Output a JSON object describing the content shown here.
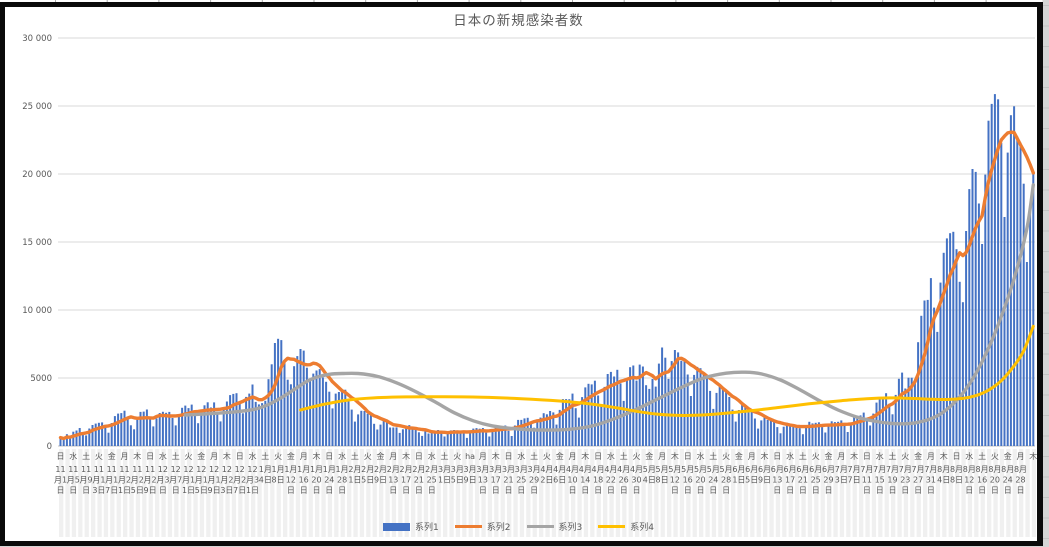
{
  "chart_data": {
    "type": "bar",
    "combo": "bar+line",
    "title": "日本の新規感染者数",
    "x_start": "2020年11月1日",
    "x_end": "2021年9月1日",
    "x_label_interval_days": 4,
    "ylim": [
      0,
      30000
    ],
    "grid": true,
    "legend_position": "bottom",
    "y_ticks": [
      "0",
      "5000",
      "10 000",
      "15 000",
      "20 000",
      "25 000",
      "30 000"
    ],
    "y_tick_values": [
      0,
      5000,
      10000,
      15000,
      20000,
      25000,
      30000
    ],
    "x_labels": [
      [
        "日",
        "11月1日"
      ],
      [
        "水",
        "11月5日"
      ],
      [
        "土",
        "11月9日"
      ],
      [
        "火",
        "11月13日"
      ],
      [
        "金",
        "11月17日"
      ],
      [
        "月",
        "11月21日"
      ],
      [
        "木",
        "11月25日"
      ],
      [
        "日",
        "11月29日"
      ],
      [
        "水",
        "12月3日"
      ],
      [
        "土",
        "12月7日"
      ],
      [
        "火",
        "12月11日"
      ],
      [
        "金",
        "12月15日"
      ],
      [
        "月",
        "12月19日"
      ],
      [
        "木",
        "12月23日"
      ],
      [
        "日",
        "12月27日"
      ],
      [
        "水",
        "12月31日"
      ],
      [
        "土",
        "1月4日"
      ],
      [
        "火",
        "1月8日"
      ],
      [
        "金",
        "1月12日"
      ],
      [
        "月",
        "1月16日"
      ],
      [
        "木",
        "1月20日"
      ],
      [
        "日",
        "1月24日"
      ],
      [
        "水",
        "1月28日"
      ],
      [
        "土",
        "2月1日"
      ],
      [
        "火",
        "2月5日"
      ],
      [
        "金",
        "2月9日"
      ],
      [
        "月",
        "2月13日"
      ],
      [
        "木",
        "2月17日"
      ],
      [
        "日",
        "2月21日"
      ],
      [
        "水",
        "2月25日"
      ],
      [
        "土",
        "3月1日"
      ],
      [
        "火",
        "3月5日"
      ],
      [
        "ha",
        "3月9日"
      ],
      [
        "月",
        "3月13日"
      ],
      [
        "木",
        "3月17日"
      ],
      [
        "日",
        "3月21日"
      ],
      [
        "水",
        "3月25日"
      ],
      [
        "土",
        "3月29日"
      ],
      [
        "火",
        "4月2日"
      ],
      [
        "金",
        "4月6日"
      ],
      [
        "月",
        "4月10日"
      ],
      [
        "木",
        "4月14日"
      ],
      [
        "日",
        "4月18日"
      ],
      [
        "水",
        "4月22日"
      ],
      [
        "土",
        "4月26日"
      ],
      [
        "火",
        "4月30日"
      ],
      [
        "金",
        "5月4日"
      ],
      [
        "月",
        "5月8日"
      ],
      [
        "木",
        "5月12日"
      ],
      [
        "日",
        "5月16日"
      ],
      [
        "水",
        "5月20日"
      ],
      [
        "土",
        "5月24日"
      ],
      [
        "火",
        "5月28日"
      ],
      [
        "金",
        "6月1日"
      ],
      [
        "月",
        "6月5日"
      ],
      [
        "木",
        "6月9日"
      ],
      [
        "日",
        "6月13日"
      ],
      [
        "水",
        "6月17日"
      ],
      [
        "土",
        "6月21日"
      ],
      [
        "火",
        "6月25日"
      ],
      [
        "金",
        "6月29日"
      ],
      [
        "月",
        "7月3日"
      ],
      [
        "木",
        "7月7日"
      ],
      [
        "日",
        "7月11日"
      ],
      [
        "水",
        "7月15日"
      ],
      [
        "土",
        "7月19日"
      ],
      [
        "火",
        "7月23日"
      ],
      [
        "金",
        "7月27日"
      ],
      [
        "月",
        "7月31日"
      ],
      [
        "木",
        "8月4日"
      ],
      [
        "日",
        "8月8日"
      ],
      [
        "水",
        "8月12日"
      ],
      [
        "土",
        "8月16日"
      ],
      [
        "火",
        "8月20日"
      ],
      [
        "金",
        "8月24日"
      ],
      [
        "月",
        "8月28日"
      ],
      [
        "木",
        ""
      ],
      [
        "日",
        ""
      ]
    ],
    "series": [
      {
        "name": "系列1",
        "type": "bar",
        "color": "#4472C4",
        "values": [
          614,
          487,
          867,
          620,
          1050,
          1141,
          1325,
          944,
          780,
          1284,
          1543,
          1650,
          1705,
          1737,
          1440,
          978,
          1693,
          2201,
          2386,
          2418,
          2592,
          2168,
          1520,
          1229,
          1930,
          2504,
          2531,
          2684,
          2066,
          1438,
          2030,
          2430,
          2518,
          2442,
          2508,
          2058,
          1515,
          2152,
          2810,
          2971,
          2788,
          3041,
          2388,
          1680,
          2410,
          2994,
          3211,
          2829,
          3205,
          2501,
          1806,
          2688,
          3271,
          3742,
          3832,
          3881,
          3127,
          2403,
          3608,
          3852,
          4520,
          3246,
          3059,
          3158,
          3325,
          4915,
          6004,
          7570,
          7882,
          7790,
          6096,
          4875,
          4535,
          5870,
          6607,
          7133,
          7014,
          5759,
          4925,
          5320,
          5549,
          5653,
          5045,
          4717,
          3990,
          2764,
          3853,
          3971,
          4133,
          4141,
          3344,
          2673,
          1792,
          2324,
          2585,
          2576,
          2372,
          2277,
          1630,
          1216,
          1571,
          1887,
          1933,
          1362,
          1361,
          1364,
          965,
          1231,
          1448,
          1538,
          1301,
          1234,
          1005,
          739,
          1083,
          922,
          1076,
          1083,
          1180,
          999,
          697,
          888,
          1148,
          1174,
          1148,
          1121,
          1121,
          599,
          974,
          1277,
          1316,
          1271,
          1320,
          988,
          695,
          1133,
          1448,
          1500,
          1463,
          1506,
          1119,
          734,
          1504,
          1918,
          1917,
          2027,
          2071,
          1785,
          1348,
          1905,
          2090,
          2414,
          2331,
          2574,
          2472,
          1571,
          2653,
          3449,
          3450,
          3442,
          3854,
          2778,
          2091,
          3597,
          4308,
          4576,
          4532,
          4802,
          3711,
          2905,
          4342,
          5291,
          5452,
          5113,
          5605,
          4605,
          3318,
          4965,
          5792,
          5918,
          4808,
          5986,
          5848,
          4470,
          4199,
          4930,
          4365,
          6058,
          7244,
          6493,
          4936,
          6242,
          7057,
          6879,
          6263,
          6421,
          5261,
          3680,
          5230,
          5815,
          5720,
          5249,
          5040,
          4048,
          2730,
          3901,
          4536,
          4142,
          3955,
          3601,
          2674,
          1791,
          2644,
          3035,
          2840,
          2588,
          2644,
          2022,
          1278,
          1884,
          2092,
          1911,
          1862,
          1937,
          1387,
          937,
          1420,
          1709,
          1555,
          1605,
          1521,
          1307,
          868,
          1435,
          1777,
          1661,
          1704,
          1740,
          1387,
          994,
          1475,
          1817,
          1754,
          1782,
          1879,
          1485,
          1030,
          1589,
          2180,
          2246,
          2248,
          2458,
          2026,
          1506,
          2386,
          3194,
          3418,
          3423,
          3886,
          3103,
          2329,
          3758,
          4943,
          5397,
          4225,
          5020,
          5020,
          4692,
          7629,
          9576,
          10699,
          10743,
          12342,
          10177,
          8393,
          12017,
          14207,
          15263,
          15645,
          15753,
          14472,
          12073,
          10574,
          15812,
          18889,
          20365,
          20151,
          17832,
          14854,
          19955,
          23917,
          25156,
          25876,
          25492,
          22284,
          16841,
          21570,
          24321,
          24976,
          22750,
          22301,
          19286,
          13529,
          17713,
          20031
        ]
      },
      {
        "name": "系列2",
        "type": "line",
        "color": "#ED7D31",
        "derived": "7-day trailing moving average of 系列1"
      },
      {
        "name": "系列3",
        "type": "line",
        "color": "#A5A5A5",
        "points": [
          [
            39,
            2280
          ],
          [
            47,
            2380
          ],
          [
            55,
            2520
          ],
          [
            61,
            2720
          ],
          [
            65,
            3050
          ],
          [
            69,
            3550
          ],
          [
            73,
            4150
          ],
          [
            77,
            4750
          ],
          [
            80,
            5050
          ],
          [
            84,
            5270
          ],
          [
            88,
            5330
          ],
          [
            93,
            5330
          ],
          [
            99,
            5120
          ],
          [
            105,
            4650
          ],
          [
            111,
            4000
          ],
          [
            117,
            3250
          ],
          [
            123,
            2450
          ],
          [
            129,
            1850
          ],
          [
            135,
            1480
          ],
          [
            143,
            1250
          ],
          [
            151,
            1170
          ],
          [
            159,
            1230
          ],
          [
            166,
            1470
          ],
          [
            173,
            2000
          ],
          [
            180,
            2700
          ],
          [
            187,
            3500
          ],
          [
            194,
            4300
          ],
          [
            201,
            5000
          ],
          [
            208,
            5350
          ],
          [
            214,
            5430
          ],
          [
            219,
            5300
          ],
          [
            225,
            4850
          ],
          [
            231,
            4150
          ],
          [
            237,
            3350
          ],
          [
            243,
            2650
          ],
          [
            249,
            2120
          ],
          [
            255,
            1800
          ],
          [
            261,
            1640
          ],
          [
            267,
            1700
          ],
          [
            273,
            2100
          ],
          [
            278,
            2900
          ],
          [
            283,
            4200
          ],
          [
            288,
            6200
          ],
          [
            293,
            8900
          ],
          [
            298,
            12300
          ],
          [
            302,
            16000
          ],
          [
            304,
            19200
          ]
        ]
      },
      {
        "name": "系列4",
        "type": "line",
        "color": "#FFC000",
        "points": [
          [
            75,
            2650
          ],
          [
            82,
            3050
          ],
          [
            90,
            3380
          ],
          [
            98,
            3540
          ],
          [
            108,
            3610
          ],
          [
            120,
            3620
          ],
          [
            132,
            3580
          ],
          [
            144,
            3480
          ],
          [
            156,
            3310
          ],
          [
            166,
            3080
          ],
          [
            174,
            2800
          ],
          [
            180,
            2550
          ],
          [
            186,
            2350
          ],
          [
            192,
            2260
          ],
          [
            198,
            2260
          ],
          [
            205,
            2350
          ],
          [
            214,
            2550
          ],
          [
            224,
            2820
          ],
          [
            234,
            3100
          ],
          [
            244,
            3330
          ],
          [
            252,
            3480
          ],
          [
            260,
            3540
          ],
          [
            266,
            3500
          ],
          [
            272,
            3440
          ],
          [
            277,
            3420
          ],
          [
            282,
            3500
          ],
          [
            286,
            3700
          ],
          [
            290,
            4100
          ],
          [
            294,
            4800
          ],
          [
            298,
            5900
          ],
          [
            301,
            7000
          ],
          [
            304,
            8800
          ]
        ]
      }
    ],
    "legend": [
      {
        "label": "系列1",
        "color": "#4472C4",
        "marker": "bar"
      },
      {
        "label": "系列2",
        "color": "#ED7D31",
        "marker": "line"
      },
      {
        "label": "系列3",
        "color": "#A5A5A5",
        "marker": "line"
      },
      {
        "label": "系列4",
        "color": "#FFC000",
        "marker": "line"
      }
    ],
    "style": {
      "gridline_color": "#D9D9D9",
      "axis_line_color": "#BFBFBF",
      "text_color": "#595959",
      "label_stripe_color": "#F0F0F0",
      "chart_border_color": "#0A0A0A",
      "sheet_background": "#D5D5D5",
      "sheet_gridline": "#C3C3C3"
    }
  }
}
